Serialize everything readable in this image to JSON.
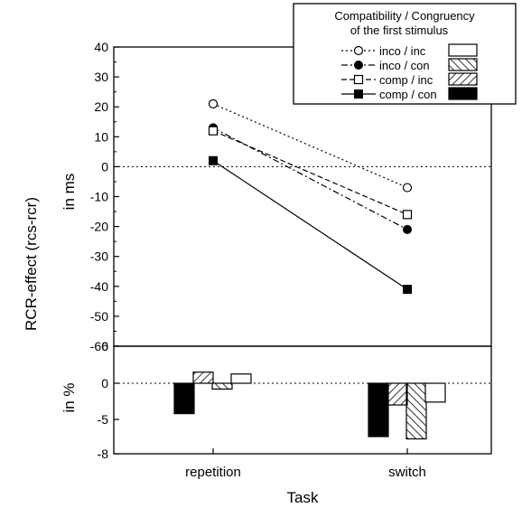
{
  "chart_data": [
    {
      "type": "line",
      "panel": "top",
      "categories": [
        "repetition",
        "switch"
      ],
      "ylabel": "in ms",
      "ylim": [
        -60,
        40
      ],
      "yticks": [
        40,
        30,
        20,
        10,
        0,
        -10,
        -20,
        -30,
        -40,
        -50,
        -60
      ],
      "reference_line": 0,
      "series": [
        {
          "name": "inco / inc",
          "marker": "open-circle",
          "line": "dotted",
          "values": [
            21,
            -7
          ]
        },
        {
          "name": "inco / con",
          "marker": "filled-circle",
          "line": "dash-dot",
          "values": [
            13,
            -21
          ]
        },
        {
          "name": "comp / inc",
          "marker": "open-square",
          "line": "dashed",
          "values": [
            12,
            -16
          ]
        },
        {
          "name": "comp / con",
          "marker": "filled-square",
          "line": "solid",
          "values": [
            2,
            -41
          ]
        }
      ]
    },
    {
      "type": "bar",
      "panel": "bottom",
      "categories": [
        "repetition",
        "switch"
      ],
      "xlabel": "Task",
      "ylabel": "in %",
      "yticks": [
        "6",
        "0",
        "-5",
        "-8"
      ],
      "reference_line": 0,
      "series": [
        {
          "name": "comp / con",
          "fill": "solid-black",
          "values": [
            -4.2,
            -6.5
          ]
        },
        {
          "name": "comp / inc",
          "fill": "hatch-forward",
          "values": [
            1.8,
            -3.0
          ]
        },
        {
          "name": "inco / con",
          "fill": "hatch-back",
          "values": [
            -0.8,
            -6.7
          ]
        },
        {
          "name": "inco / inc",
          "fill": "open",
          "values": [
            1.5,
            -2.6
          ]
        }
      ]
    }
  ],
  "ylabel_shared": "RCR-effect (rcs-rcr)",
  "legend": {
    "title_line1": "Compatibility / Congruency",
    "title_line2": "of the first stimulus",
    "placement": "top-right",
    "entries": [
      {
        "label": "inco / inc"
      },
      {
        "label": "inco / con"
      },
      {
        "label": "comp / inc"
      },
      {
        "label": "comp / con"
      }
    ]
  }
}
